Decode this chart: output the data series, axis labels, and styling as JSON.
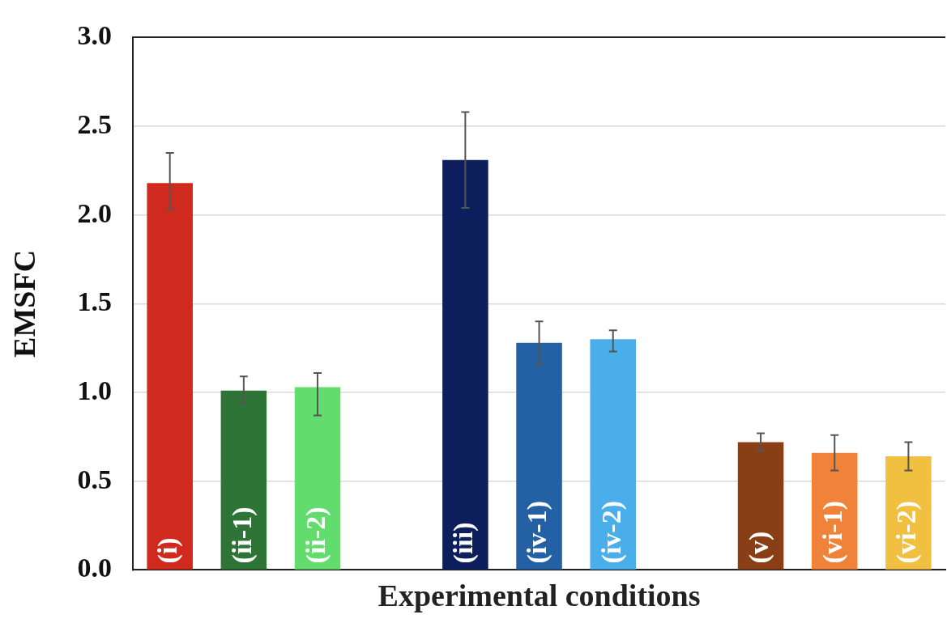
{
  "chart_data": {
    "type": "bar",
    "xlabel": "Experimental conditions",
    "ylabel": "EMSFC",
    "categories": [
      "(i)",
      "(ii-1)",
      "(ii-2)",
      null,
      "(iii)",
      "(iv-1)",
      "(iv-2)",
      null,
      "(v)",
      "(vi-1)",
      "(vi-2)"
    ],
    "values": [
      2.18,
      1.01,
      1.03,
      null,
      2.31,
      1.28,
      1.3,
      null,
      0.72,
      0.66,
      0.64
    ],
    "colors": [
      "#d02a1e",
      "#2e7436",
      "#62dc6c",
      null,
      "#0c1f5c",
      "#2460a4",
      "#4aaeea",
      null,
      "#8a3e16",
      "#f0823a",
      "#f2c040"
    ],
    "errors": [
      [
        2.03,
        2.35
      ],
      [
        0.94,
        1.09
      ],
      [
        0.87,
        1.11
      ],
      null,
      [
        2.04,
        2.58
      ],
      [
        1.16,
        1.4
      ],
      [
        1.23,
        1.35
      ],
      null,
      [
        0.67,
        0.77
      ],
      [
        0.56,
        0.76
      ],
      [
        0.56,
        0.72
      ]
    ],
    "ylim": [
      0,
      3
    ],
    "yticks": [
      {
        "value": 0,
        "label": "0.0"
      },
      {
        "value": 0.5,
        "label": "0.5"
      },
      {
        "value": 1,
        "label": "1.0"
      },
      {
        "value": 1.5,
        "label": "1.5"
      },
      {
        "value": 2,
        "label": "2.0"
      },
      {
        "value": 2.5,
        "label": "2.5"
      },
      {
        "value": 3,
        "label": "3.0"
      }
    ],
    "grid": "y",
    "legend": false
  }
}
